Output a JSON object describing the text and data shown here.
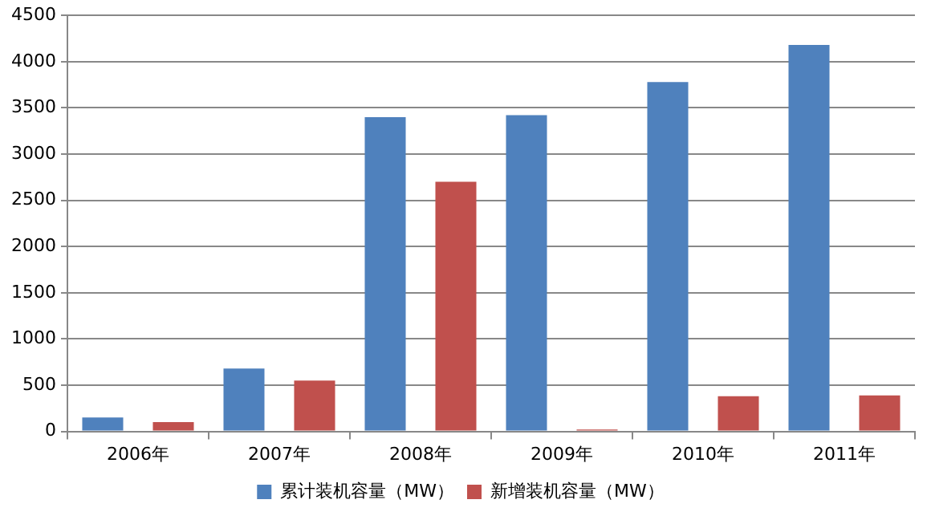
{
  "chart_data": {
    "type": "bar",
    "categories": [
      "2006年",
      "2007年",
      "2008年",
      "2009年",
      "2010年",
      "2011年"
    ],
    "series": [
      {
        "name": "累计装机容量（MW）",
        "color": "#4f81bd",
        "values": [
          150,
          680,
          3400,
          3420,
          3780,
          4180
        ]
      },
      {
        "name": "新增装机容量（MW）",
        "color": "#c0504d",
        "values": [
          100,
          550,
          2700,
          20,
          380,
          390
        ]
      }
    ],
    "ylim": [
      0,
      4500
    ],
    "yticks": [
      0,
      500,
      1000,
      1500,
      2000,
      2500,
      3000,
      3500,
      4000,
      4500
    ],
    "grid": "y",
    "legend": "bottom"
  }
}
